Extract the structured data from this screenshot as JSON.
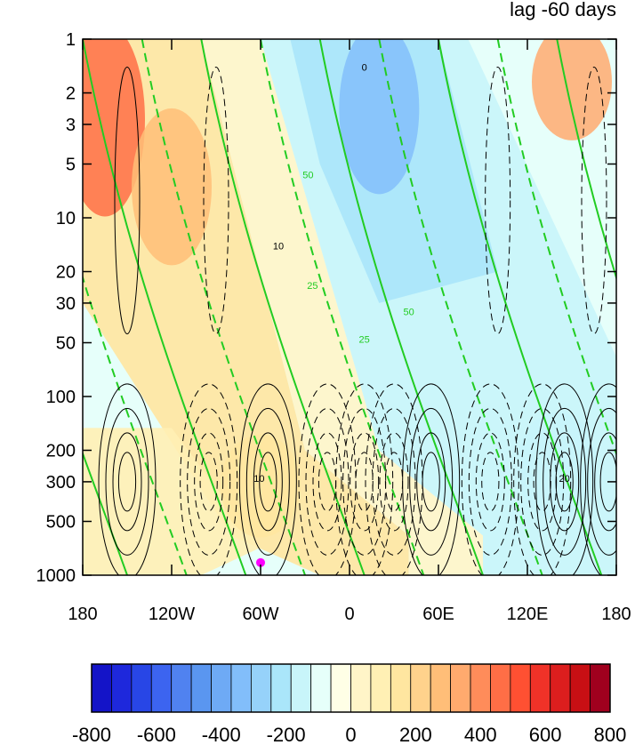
{
  "chart_data": {
    "type": "heatmap",
    "title": "lag -60 days",
    "x_ticks": [
      {
        "value": -180,
        "label": "180"
      },
      {
        "value": -120,
        "label": "120W"
      },
      {
        "value": -60,
        "label": "60W"
      },
      {
        "value": 0,
        "label": "0"
      },
      {
        "value": 60,
        "label": "60E"
      },
      {
        "value": 120,
        "label": "120E"
      },
      {
        "value": 180,
        "label": "180"
      }
    ],
    "y_axis": {
      "scale": "log",
      "reversed": true,
      "range": [
        1,
        1000
      ]
    },
    "y_ticks": [
      1,
      2,
      3,
      5,
      10,
      20,
      30,
      50,
      100,
      200,
      300,
      500,
      1000
    ],
    "colorbar": {
      "ticks": [
        -800,
        -600,
        -400,
        -200,
        0,
        200,
        400,
        600,
        800
      ],
      "range": [
        -800,
        800
      ],
      "colors": [
        "#1414c8",
        "#1e28dc",
        "#2846e6",
        "#3c64f0",
        "#5082f0",
        "#5a96f0",
        "#6eaaf5",
        "#82befa",
        "#96d2fa",
        "#aae6fa",
        "#c8f5fa",
        "#e6fffa",
        "#ffffe6",
        "#fff5c8",
        "#fff0b4",
        "#ffe6a0",
        "#ffd28c",
        "#ffbe78",
        "#ffaa6e",
        "#ff8c5a",
        "#ff6e46",
        "#ff5032",
        "#f03228",
        "#dc1e1e",
        "#c80f14",
        "#a0001e"
      ]
    },
    "shading_bands": [
      {
        "lon": -165,
        "p_top": 1,
        "p_bottom": 8,
        "value": 450
      },
      {
        "lon": -120,
        "p_top": 3,
        "p_bottom": 15,
        "value": 250
      },
      {
        "lon": 20,
        "p_top": 1,
        "p_bottom": 6,
        "value": -350
      },
      {
        "lon": 150,
        "p_top": 1,
        "p_bottom": 3,
        "value": 350
      },
      {
        "lon": 140,
        "p_top": 150,
        "p_bottom": 400,
        "value": -150
      },
      {
        "lon": -60,
        "p_top": 200,
        "p_bottom": 500,
        "value": 150
      }
    ],
    "contour_labels": [
      {
        "lon": 10,
        "p": 1.5,
        "text": "0"
      },
      {
        "lon": -48,
        "p": 15,
        "text": "10"
      },
      {
        "lon": 145,
        "p": 300,
        "text": "20"
      },
      {
        "lon": -61,
        "p": 300,
        "text": "10"
      },
      {
        "lon": -28,
        "p": 6,
        "text": "50"
      },
      {
        "lon": -25,
        "p": 25,
        "text": "25"
      },
      {
        "lon": 40,
        "p": 35,
        "text": "50"
      },
      {
        "lon": 10,
        "p": 50,
        "text": "25"
      }
    ],
    "markers": [
      {
        "lon": -60,
        "p": 850,
        "color": "#ff00ff"
      }
    ]
  }
}
